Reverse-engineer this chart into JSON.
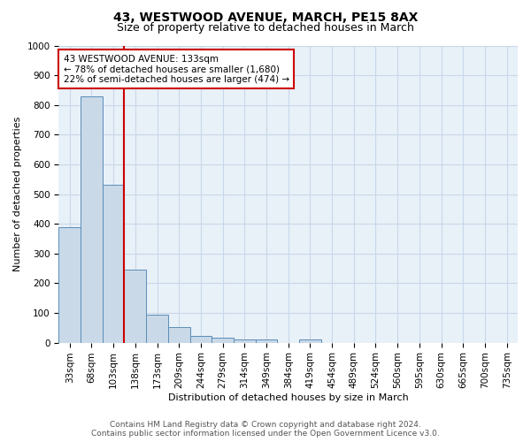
{
  "title1": "43, WESTWOOD AVENUE, MARCH, PE15 8AX",
  "title2": "Size of property relative to detached houses in March",
  "xlabel": "Distribution of detached houses by size in March",
  "ylabel": "Number of detached properties",
  "bin_labels": [
    "33sqm",
    "68sqm",
    "103sqm",
    "138sqm",
    "173sqm",
    "209sqm",
    "244sqm",
    "279sqm",
    "314sqm",
    "349sqm",
    "384sqm",
    "419sqm",
    "454sqm",
    "489sqm",
    "524sqm",
    "560sqm",
    "595sqm",
    "630sqm",
    "665sqm",
    "700sqm",
    "735sqm"
  ],
  "bar_values": [
    390,
    830,
    530,
    245,
    95,
    52,
    22,
    18,
    12,
    10,
    0,
    10,
    0,
    0,
    0,
    0,
    0,
    0,
    0,
    0,
    0
  ],
  "bar_color": "#c9d9e8",
  "bar_edge_color": "#5b8db8",
  "vline_color": "#cc0000",
  "annotation_text": "43 WESTWOOD AVENUE: 133sqm\n← 78% of detached houses are smaller (1,680)\n22% of semi-detached houses are larger (474) →",
  "annotation_box_color": "white",
  "annotation_box_edge_color": "#cc0000",
  "ylim": [
    0,
    1000
  ],
  "yticks": [
    0,
    100,
    200,
    300,
    400,
    500,
    600,
    700,
    800,
    900,
    1000
  ],
  "grid_color": "#c8d8e8",
  "background_color": "#e8f0f8",
  "footer1": "Contains HM Land Registry data © Crown copyright and database right 2024.",
  "footer2": "Contains public sector information licensed under the Open Government Licence v3.0.",
  "title1_fontsize": 10,
  "title2_fontsize": 9,
  "axis_label_fontsize": 8,
  "tick_fontsize": 7.5,
  "annotation_fontsize": 7.5,
  "footer_fontsize": 6.5
}
